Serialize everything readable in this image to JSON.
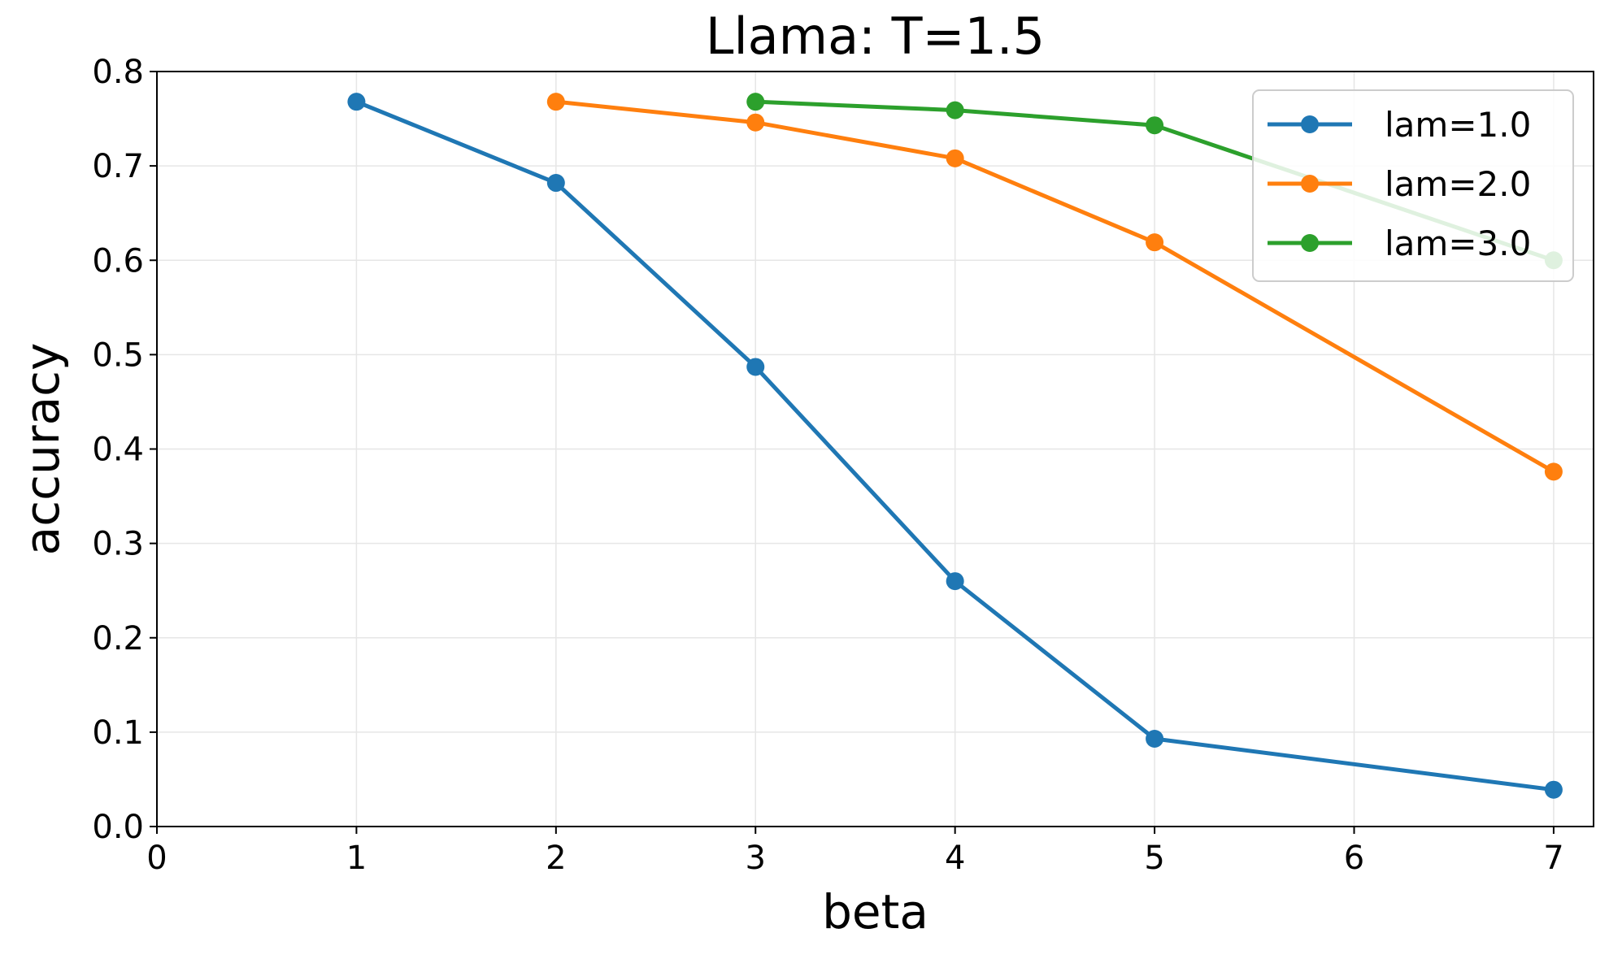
{
  "chart_data": {
    "type": "line",
    "title": "Llama: T=1.5",
    "xlabel": "beta",
    "ylabel": "accuracy",
    "xlim": [
      0,
      7.2
    ],
    "ylim": [
      0,
      0.8
    ],
    "xticks": [
      "0",
      "1",
      "2",
      "3",
      "4",
      "5",
      "6",
      "7"
    ],
    "yticks": [
      "0.0",
      "0.1",
      "0.2",
      "0.3",
      "0.4",
      "0.5",
      "0.6",
      "0.7",
      "0.8"
    ],
    "grid": true,
    "legend_position": "top-right",
    "series": [
      {
        "name": "lam=1.0",
        "color": "#1f77b4",
        "x": [
          1,
          2,
          3,
          4,
          5,
          7
        ],
        "y": [
          0.768,
          0.682,
          0.487,
          0.26,
          0.093,
          0.039
        ]
      },
      {
        "name": "lam=2.0",
        "color": "#ff7f0e",
        "x": [
          2,
          3,
          4,
          5,
          7
        ],
        "y": [
          0.768,
          0.746,
          0.708,
          0.619,
          0.376
        ]
      },
      {
        "name": "lam=3.0",
        "color": "#2ca02c",
        "x": [
          3,
          4,
          5,
          7
        ],
        "y": [
          0.768,
          0.759,
          0.743,
          0.6
        ]
      }
    ]
  }
}
